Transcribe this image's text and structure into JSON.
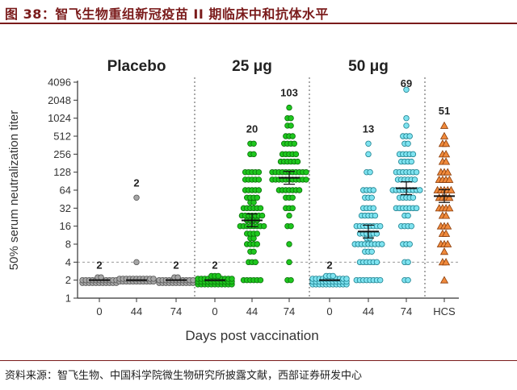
{
  "figure": {
    "title": "图 38：智飞生物重组新冠疫苗 II 期临床中和抗体水平",
    "source": "资料来源：智飞生物、中国科学院微生物研究所披露文献，西部证券研发中心"
  },
  "chart_data": {
    "type": "scatter",
    "ylabel": "50% serum neutralization titer",
    "xlabel": "Days post vaccination",
    "yscale": "log2",
    "ylim": [
      1,
      4096
    ],
    "y_ticks": [
      "1",
      "2",
      "4",
      "8",
      "16",
      "32",
      "64",
      "128",
      "256",
      "512",
      "1024",
      "2048",
      "4096"
    ],
    "threshold": 4,
    "groups": [
      {
        "name": "Placebo",
        "columns": [
          0,
          1,
          2
        ]
      },
      {
        "name": "25 μg",
        "columns": [
          3,
          4,
          5
        ]
      },
      {
        "name": "50 μg",
        "columns": [
          6,
          7,
          8
        ]
      }
    ],
    "columns": [
      {
        "label": "0",
        "group": "Placebo",
        "gmt_label": "2",
        "gmt": 2,
        "fill": "#a6a6a6",
        "stroke": "#555555",
        "shape": "circle",
        "values": [
          2,
          2,
          2,
          2,
          2,
          2,
          2,
          2,
          2,
          2,
          2,
          2,
          2,
          2,
          2,
          2,
          2,
          2,
          2,
          2,
          2,
          2,
          2,
          2
        ]
      },
      {
        "label": "44",
        "group": "Placebo",
        "gmt_label": "2",
        "gmt": 2,
        "fill": "#a6a6a6",
        "stroke": "#555555",
        "shape": "circle",
        "values": [
          2,
          2,
          2,
          2,
          2,
          2,
          2,
          2,
          2,
          2,
          2,
          2,
          2,
          2,
          2,
          2,
          2,
          2,
          2,
          2,
          2,
          2,
          4,
          48
        ]
      },
      {
        "label": "74",
        "group": "Placebo",
        "gmt_label": "2",
        "gmt": 2,
        "fill": "#a6a6a6",
        "stroke": "#555555",
        "shape": "circle",
        "values": [
          2,
          2,
          2,
          2,
          2,
          2,
          2,
          2,
          2,
          2,
          2,
          2,
          2,
          2,
          2,
          2,
          2,
          2,
          2,
          2,
          2,
          2,
          2,
          2
        ]
      },
      {
        "label": "0",
        "group": "25 μg",
        "gmt_label": "2",
        "gmt": 2,
        "fill": "#1ec71e",
        "stroke": "#0a6e0a",
        "shape": "circle",
        "values": [
          2,
          2,
          2,
          2,
          2,
          2,
          2,
          2,
          2,
          2,
          2,
          2,
          2,
          2,
          2,
          2,
          2,
          2,
          2,
          2,
          2,
          2,
          2,
          2,
          2,
          2,
          2,
          2,
          2,
          2,
          2,
          2,
          2,
          2,
          2,
          2
        ]
      },
      {
        "label": "44",
        "group": "25 μg",
        "gmt_label": "20",
        "gmt": 20,
        "fill": "#1ec71e",
        "stroke": "#0a6e0a",
        "shape": "circle",
        "values": [
          2,
          2,
          2,
          2,
          2,
          2,
          4,
          4,
          4,
          6,
          6,
          8,
          8,
          8,
          8,
          10,
          10,
          12,
          12,
          12,
          12,
          16,
          16,
          16,
          16,
          16,
          16,
          16,
          16,
          20,
          20,
          20,
          20,
          24,
          24,
          24,
          24,
          24,
          24,
          24,
          32,
          32,
          32,
          32,
          32,
          32,
          40,
          40,
          48,
          48,
          48,
          48,
          64,
          64,
          64,
          64,
          64,
          96,
          96,
          96,
          96,
          96,
          128,
          128,
          128,
          128,
          128,
          256,
          256,
          384,
          384
        ]
      },
      {
        "label": "74",
        "group": "25 μg",
        "gmt_label": "103",
        "gmt": 103,
        "fill": "#1ec71e",
        "stroke": "#0a6e0a",
        "shape": "circle",
        "values": [
          2,
          2,
          4,
          8,
          16,
          16,
          24,
          32,
          32,
          32,
          48,
          48,
          48,
          64,
          64,
          64,
          64,
          64,
          64,
          64,
          96,
          96,
          96,
          96,
          96,
          96,
          96,
          96,
          96,
          96,
          96,
          128,
          128,
          128,
          128,
          128,
          128,
          128,
          128,
          128,
          128,
          128,
          192,
          192,
          192,
          192,
          192,
          192,
          256,
          256,
          256,
          256,
          256,
          384,
          384,
          384,
          384,
          512,
          512,
          512,
          768,
          768,
          1024,
          1024,
          1536
        ]
      },
      {
        "label": "0",
        "group": "50 μg",
        "gmt_label": "2",
        "gmt": 2,
        "fill": "#7fe3f0",
        "stroke": "#1a7f8e",
        "shape": "circle",
        "values": [
          2,
          2,
          2,
          2,
          2,
          2,
          2,
          2,
          2,
          2,
          2,
          2,
          2,
          2,
          2,
          2,
          2,
          2,
          2,
          2,
          2,
          2,
          2,
          2,
          2,
          2,
          2,
          2,
          2,
          2,
          2,
          2,
          2,
          2,
          2,
          2
        ]
      },
      {
        "label": "44",
        "group": "50 μg",
        "gmt_label": "13",
        "gmt": 13,
        "fill": "#7fe3f0",
        "stroke": "#1a7f8e",
        "shape": "circle",
        "values": [
          2,
          2,
          2,
          2,
          2,
          2,
          2,
          2,
          4,
          4,
          4,
          4,
          4,
          4,
          6,
          6,
          6,
          8,
          8,
          8,
          8,
          8,
          8,
          8,
          8,
          8,
          10,
          10,
          12,
          12,
          12,
          12,
          12,
          12,
          16,
          16,
          16,
          16,
          16,
          16,
          16,
          16,
          24,
          24,
          24,
          24,
          24,
          32,
          32,
          32,
          32,
          48,
          48,
          48,
          64,
          64,
          64,
          64,
          128,
          128,
          256,
          384
        ]
      },
      {
        "label": "74",
        "group": "50 μg",
        "gmt_label": "69",
        "gmt": 69,
        "fill": "#7fe3f0",
        "stroke": "#1a7f8e",
        "shape": "circle",
        "values": [
          2,
          2,
          4,
          4,
          8,
          8,
          8,
          16,
          16,
          16,
          16,
          24,
          24,
          32,
          32,
          32,
          32,
          32,
          32,
          32,
          48,
          48,
          48,
          48,
          48,
          64,
          64,
          64,
          64,
          64,
          64,
          64,
          64,
          64,
          96,
          96,
          96,
          96,
          96,
          96,
          128,
          128,
          128,
          128,
          128,
          128,
          128,
          192,
          192,
          192,
          192,
          256,
          256,
          256,
          256,
          256,
          384,
          384,
          512,
          512,
          512,
          768,
          1024,
          3072
        ]
      },
      {
        "label": "HCS",
        "group": "",
        "gmt_label": "51",
        "gmt": 51,
        "fill": "#f08a3c",
        "stroke": "#8a3b08",
        "shape": "triangle",
        "values": [
          2,
          4,
          4,
          6,
          8,
          8,
          8,
          12,
          12,
          16,
          16,
          16,
          24,
          24,
          32,
          32,
          32,
          32,
          48,
          48,
          48,
          48,
          64,
          64,
          64,
          64,
          64,
          96,
          96,
          96,
          96,
          128,
          128,
          128,
          192,
          192,
          256,
          256,
          384,
          384,
          512,
          768
        ]
      }
    ]
  }
}
